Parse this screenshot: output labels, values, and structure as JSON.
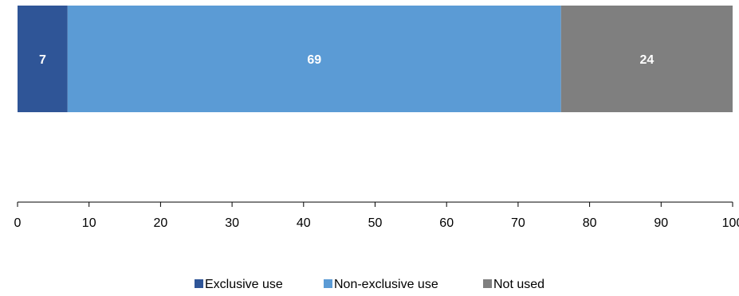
{
  "chart_data": {
    "type": "bar",
    "orientation": "horizontal",
    "stacked": true,
    "categories": [
      ""
    ],
    "series": [
      {
        "name": "Exclusive use",
        "values": [
          7
        ],
        "color": "#2f5597"
      },
      {
        "name": "Non-exclusive use",
        "values": [
          69
        ],
        "color": "#5b9bd5"
      },
      {
        "name": "Not used",
        "values": [
          24
        ],
        "color": "#7f7f7f"
      }
    ],
    "xlim": [
      0,
      100
    ],
    "x_ticks": [
      0,
      10,
      20,
      30,
      40,
      50,
      60,
      70,
      80,
      90,
      100
    ],
    "grid": false,
    "legend_position": "bottom",
    "data_labels": [
      "7",
      "69",
      "24"
    ]
  }
}
